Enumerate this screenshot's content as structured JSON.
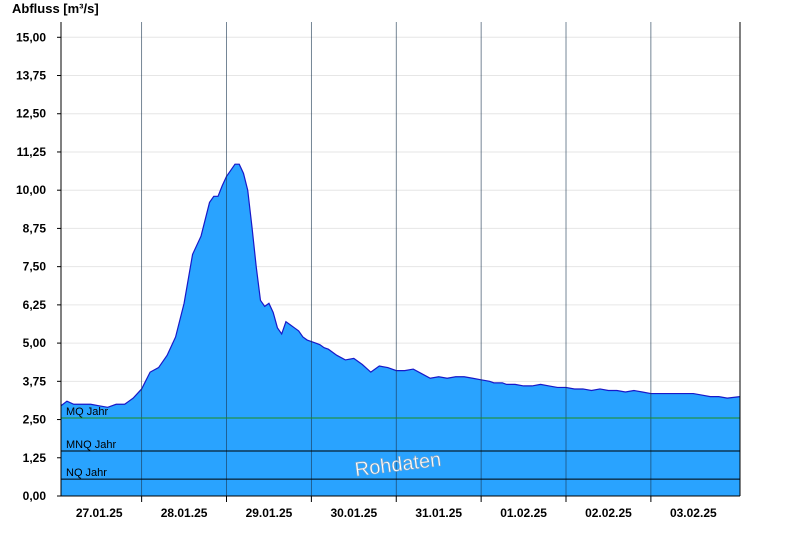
{
  "chart_data": {
    "type": "area",
    "title": "Abfluss [m³/s]",
    "xlabel": "",
    "ylabel": "Abfluss [m³/s]",
    "ylim": [
      0,
      15.5
    ],
    "yticks": [
      0,
      1.25,
      2.5,
      3.75,
      5,
      6.25,
      7.5,
      8.75,
      10,
      11.25,
      12.5,
      13.75,
      15
    ],
    "ytick_labels": [
      "0,00",
      "1,25",
      "2,50",
      "3,75",
      "5,00",
      "6,25",
      "7,50",
      "8,75",
      "10,00",
      "11,25",
      "12,50",
      "13,75",
      "15,00"
    ],
    "xlim": [
      -0.45,
      7.55
    ],
    "x_day_boundaries": [
      0.5,
      1.5,
      2.5,
      3.5,
      4.5,
      5.5,
      6.5
    ],
    "x_day_centers": [
      0,
      1,
      2,
      3,
      4,
      5,
      6,
      7
    ],
    "xtick_labels": [
      "27.01.25",
      "28.01.25",
      "29.01.25",
      "30.01.25",
      "31.01.25",
      "01.02.25",
      "02.02.25",
      "03.02.25"
    ],
    "grid": true,
    "colors": {
      "fill": "#29a3ff",
      "line": "#1818c8",
      "grid": "#e6e6e6",
      "mq": "#1e8c1e",
      "threshold": "#000000"
    },
    "reference_lines": [
      {
        "label": "MQ Jahr",
        "value": 2.55
      },
      {
        "label": "MNQ Jahr",
        "value": 1.47
      },
      {
        "label": "NQ Jahr",
        "value": 0.55
      }
    ],
    "watermark": "Rohdaten",
    "series": [
      {
        "x": [
          -0.45,
          -0.38,
          -0.3,
          -0.2,
          -0.1,
          0,
          0.1,
          0.2,
          0.3,
          0.4,
          0.5,
          0.6,
          0.7,
          0.8,
          0.9,
          1.0,
          1.1,
          1.2,
          1.3,
          1.35,
          1.4,
          1.45,
          1.5,
          1.55,
          1.6,
          1.65,
          1.7,
          1.75,
          1.8,
          1.85,
          1.9,
          1.95,
          2.0,
          2.05,
          2.1,
          2.15,
          2.2,
          2.25,
          2.3,
          2.35,
          2.4,
          2.45,
          2.5,
          2.55,
          2.6,
          2.65,
          2.7,
          2.8,
          2.9,
          3.0,
          3.1,
          3.2,
          3.3,
          3.4,
          3.5,
          3.6,
          3.7,
          3.8,
          3.9,
          4.0,
          4.1,
          4.2,
          4.3,
          4.4,
          4.5,
          4.6,
          4.65,
          4.7,
          4.75,
          4.8,
          4.85,
          4.9,
          5.0,
          5.1,
          5.2,
          5.3,
          5.4,
          5.5,
          5.6,
          5.7,
          5.8,
          5.9,
          6.0,
          6.1,
          6.2,
          6.3,
          6.4,
          6.5,
          6.6,
          6.7,
          6.8,
          6.9,
          7.0,
          7.1,
          7.2,
          7.3,
          7.4,
          7.55
        ],
        "y": [
          2.95,
          3.1,
          3.0,
          3.0,
          3.0,
          2.95,
          2.9,
          3.0,
          3.0,
          3.2,
          3.5,
          4.05,
          4.2,
          4.6,
          5.2,
          6.3,
          7.9,
          8.5,
          9.6,
          9.8,
          9.8,
          10.15,
          10.45,
          10.65,
          10.85,
          10.85,
          10.55,
          10.0,
          8.8,
          7.5,
          6.4,
          6.2,
          6.3,
          6.0,
          5.5,
          5.3,
          5.7,
          5.6,
          5.5,
          5.4,
          5.2,
          5.1,
          5.05,
          5.0,
          4.95,
          4.85,
          4.8,
          4.6,
          4.45,
          4.5,
          4.3,
          4.05,
          4.25,
          4.2,
          4.1,
          4.1,
          4.15,
          4.0,
          3.85,
          3.9,
          3.85,
          3.9,
          3.9,
          3.85,
          3.8,
          3.75,
          3.7,
          3.7,
          3.7,
          3.65,
          3.65,
          3.65,
          3.6,
          3.6,
          3.65,
          3.6,
          3.55,
          3.55,
          3.5,
          3.5,
          3.45,
          3.5,
          3.45,
          3.45,
          3.4,
          3.45,
          3.4,
          3.35,
          3.35,
          3.35,
          3.35,
          3.35,
          3.35,
          3.3,
          3.25,
          3.25,
          3.2,
          3.25
        ]
      }
    ]
  }
}
